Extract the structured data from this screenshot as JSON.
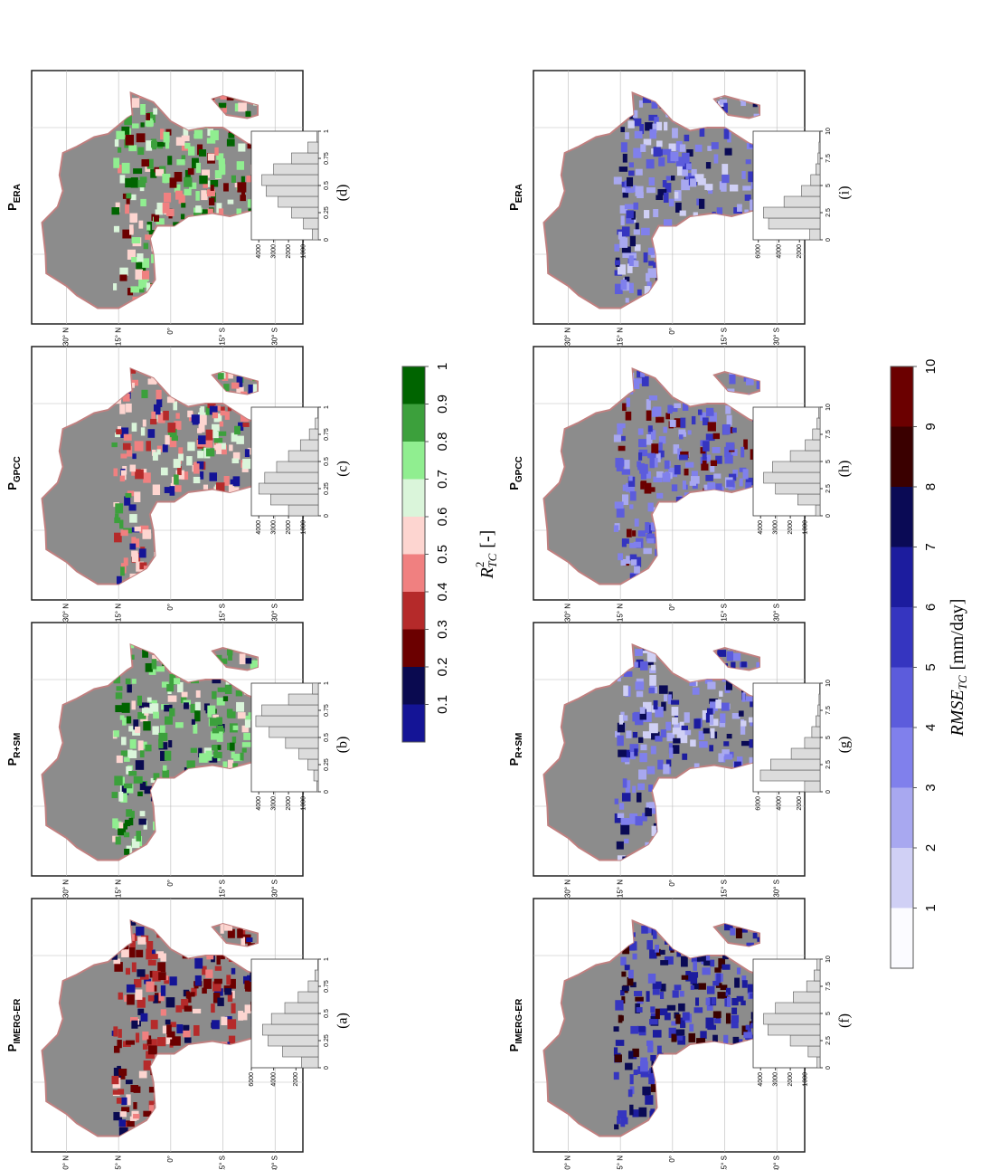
{
  "lat_ticks": [
    {
      "value": 30,
      "label": "30° N"
    },
    {
      "value": 15,
      "label": "15° N"
    },
    {
      "value": 0,
      "label": "0°"
    },
    {
      "value": -15,
      "label": "15° S"
    },
    {
      "value": -30,
      "label": "30° S"
    }
  ],
  "colorbars": [
    {
      "title": "R",
      "title_sup": "2",
      "title_sub": "TC",
      "title_unit": "[-]",
      "clim": [
        0,
        1
      ],
      "ticks": [
        0.1,
        0.2,
        0.3,
        0.4,
        0.5,
        0.6,
        0.7,
        0.8,
        0.9,
        1
      ],
      "colors": [
        "#141496",
        "#0a0a50",
        "#6b0000",
        "#b52a2a",
        "#f08080",
        "#fdd5d0",
        "#daf5da",
        "#90ee90",
        "#3ca03c",
        "#006400"
      ]
    },
    {
      "title": "RMSE",
      "title_sub": "TC",
      "title_unit": "[mm/day]",
      "clim": [
        0,
        10
      ],
      "ticks": [
        1,
        2,
        3,
        4,
        5,
        6,
        7,
        8,
        9,
        10
      ],
      "colors": [
        "#fbfbff",
        "#d0d0f5",
        "#a8a8f0",
        "#8080ec",
        "#5c5cdc",
        "#3535c0",
        "#1c1c9e",
        "#0a0a55",
        "#3a0000",
        "#6b0000"
      ]
    }
  ],
  "panels": [
    {
      "title": "P",
      "subscript": "IMERG-ER",
      "label": "(a)",
      "colorbar": 0,
      "histogram": {
        "xlim": [
          0,
          1
        ],
        "xticks": [
          0,
          0.25,
          0.5,
          0.75,
          1
        ],
        "ylim": [
          0,
          6000
        ],
        "yticks": [
          2000,
          4000,
          6000
        ],
        "counts": [
          1500,
          3200,
          4500,
          5000,
          4200,
          3000,
          1800,
          900,
          300,
          50
        ]
      }
    },
    {
      "title": "P",
      "subscript": "R+SM",
      "label": "(b)",
      "colorbar": 0,
      "histogram": {
        "xlim": [
          0,
          1
        ],
        "xticks": [
          0,
          0.25,
          0.5,
          0.75,
          1
        ],
        "ylim": [
          0,
          4500
        ],
        "yticks": [
          1000,
          2000,
          3000,
          4000
        ],
        "counts": [
          100,
          300,
          700,
          1300,
          2200,
          3300,
          4200,
          3800,
          2000,
          400
        ]
      }
    },
    {
      "title": "P",
      "subscript": "GPCC",
      "label": "(c)",
      "colorbar": 0,
      "histogram": {
        "xlim": [
          0,
          1
        ],
        "xticks": [
          0,
          0.25,
          0.5,
          0.75,
          1
        ],
        "ylim": [
          0,
          4500
        ],
        "yticks": [
          1000,
          2000,
          3000,
          4000
        ],
        "counts": [
          2000,
          3200,
          4000,
          3600,
          2800,
          2000,
          1200,
          600,
          200,
          30
        ]
      }
    },
    {
      "title": "P",
      "subscript": "ERA",
      "label": "(d)",
      "colorbar": 0,
      "histogram": {
        "xlim": [
          0,
          1
        ],
        "xticks": [
          0,
          0.25,
          0.5,
          0.75,
          1
        ],
        "ylim": [
          0,
          4500
        ],
        "yticks": [
          1000,
          2000,
          3000,
          4000
        ],
        "counts": [
          400,
          1000,
          1800,
          2700,
          3500,
          3800,
          3000,
          1800,
          700,
          100
        ]
      }
    },
    {
      "title": "P",
      "subscript": "IMERG-ER",
      "label": "(f)",
      "colorbar": 1,
      "histogram": {
        "xlim": [
          0,
          10
        ],
        "xticks": [
          0,
          2.5,
          5,
          7.5,
          10
        ],
        "ylim": [
          0,
          4500
        ],
        "yticks": [
          1000,
          2000,
          3000,
          4000
        ],
        "counts": [
          200,
          800,
          2000,
          3500,
          3800,
          3000,
          1800,
          900,
          400,
          200
        ]
      }
    },
    {
      "title": "P",
      "subscript": "R+SM",
      "label": "(g)",
      "colorbar": 1,
      "histogram": {
        "xlim": [
          0,
          10
        ],
        "xticks": [
          0,
          2.5,
          5,
          7.5,
          10
        ],
        "ylim": [
          0,
          6500
        ],
        "yticks": [
          2000,
          4000,
          6000
        ],
        "counts": [
          1500,
          5800,
          4800,
          2800,
          1500,
          800,
          400,
          200,
          100,
          50
        ]
      }
    },
    {
      "title": "P",
      "subscript": "GPCC",
      "label": "(h)",
      "colorbar": 1,
      "histogram": {
        "xlim": [
          0,
          10
        ],
        "xticks": [
          0,
          2.5,
          5,
          7.5,
          10
        ],
        "ylim": [
          0,
          4500
        ],
        "yticks": [
          1000,
          2000,
          3000,
          4000
        ],
        "counts": [
          300,
          1500,
          3000,
          3800,
          3200,
          2000,
          1000,
          500,
          200,
          100
        ]
      }
    },
    {
      "title": "P",
      "subscript": "ERA",
      "label": "(i)",
      "colorbar": 1,
      "histogram": {
        "xlim": [
          0,
          10
        ],
        "xticks": [
          0,
          2.5,
          5,
          7.5,
          10
        ],
        "ylim": [
          0,
          6500
        ],
        "yticks": [
          2000,
          4000,
          6000
        ],
        "counts": [
          1000,
          5000,
          5500,
          3500,
          1800,
          900,
          400,
          200,
          100,
          50
        ]
      }
    }
  ]
}
